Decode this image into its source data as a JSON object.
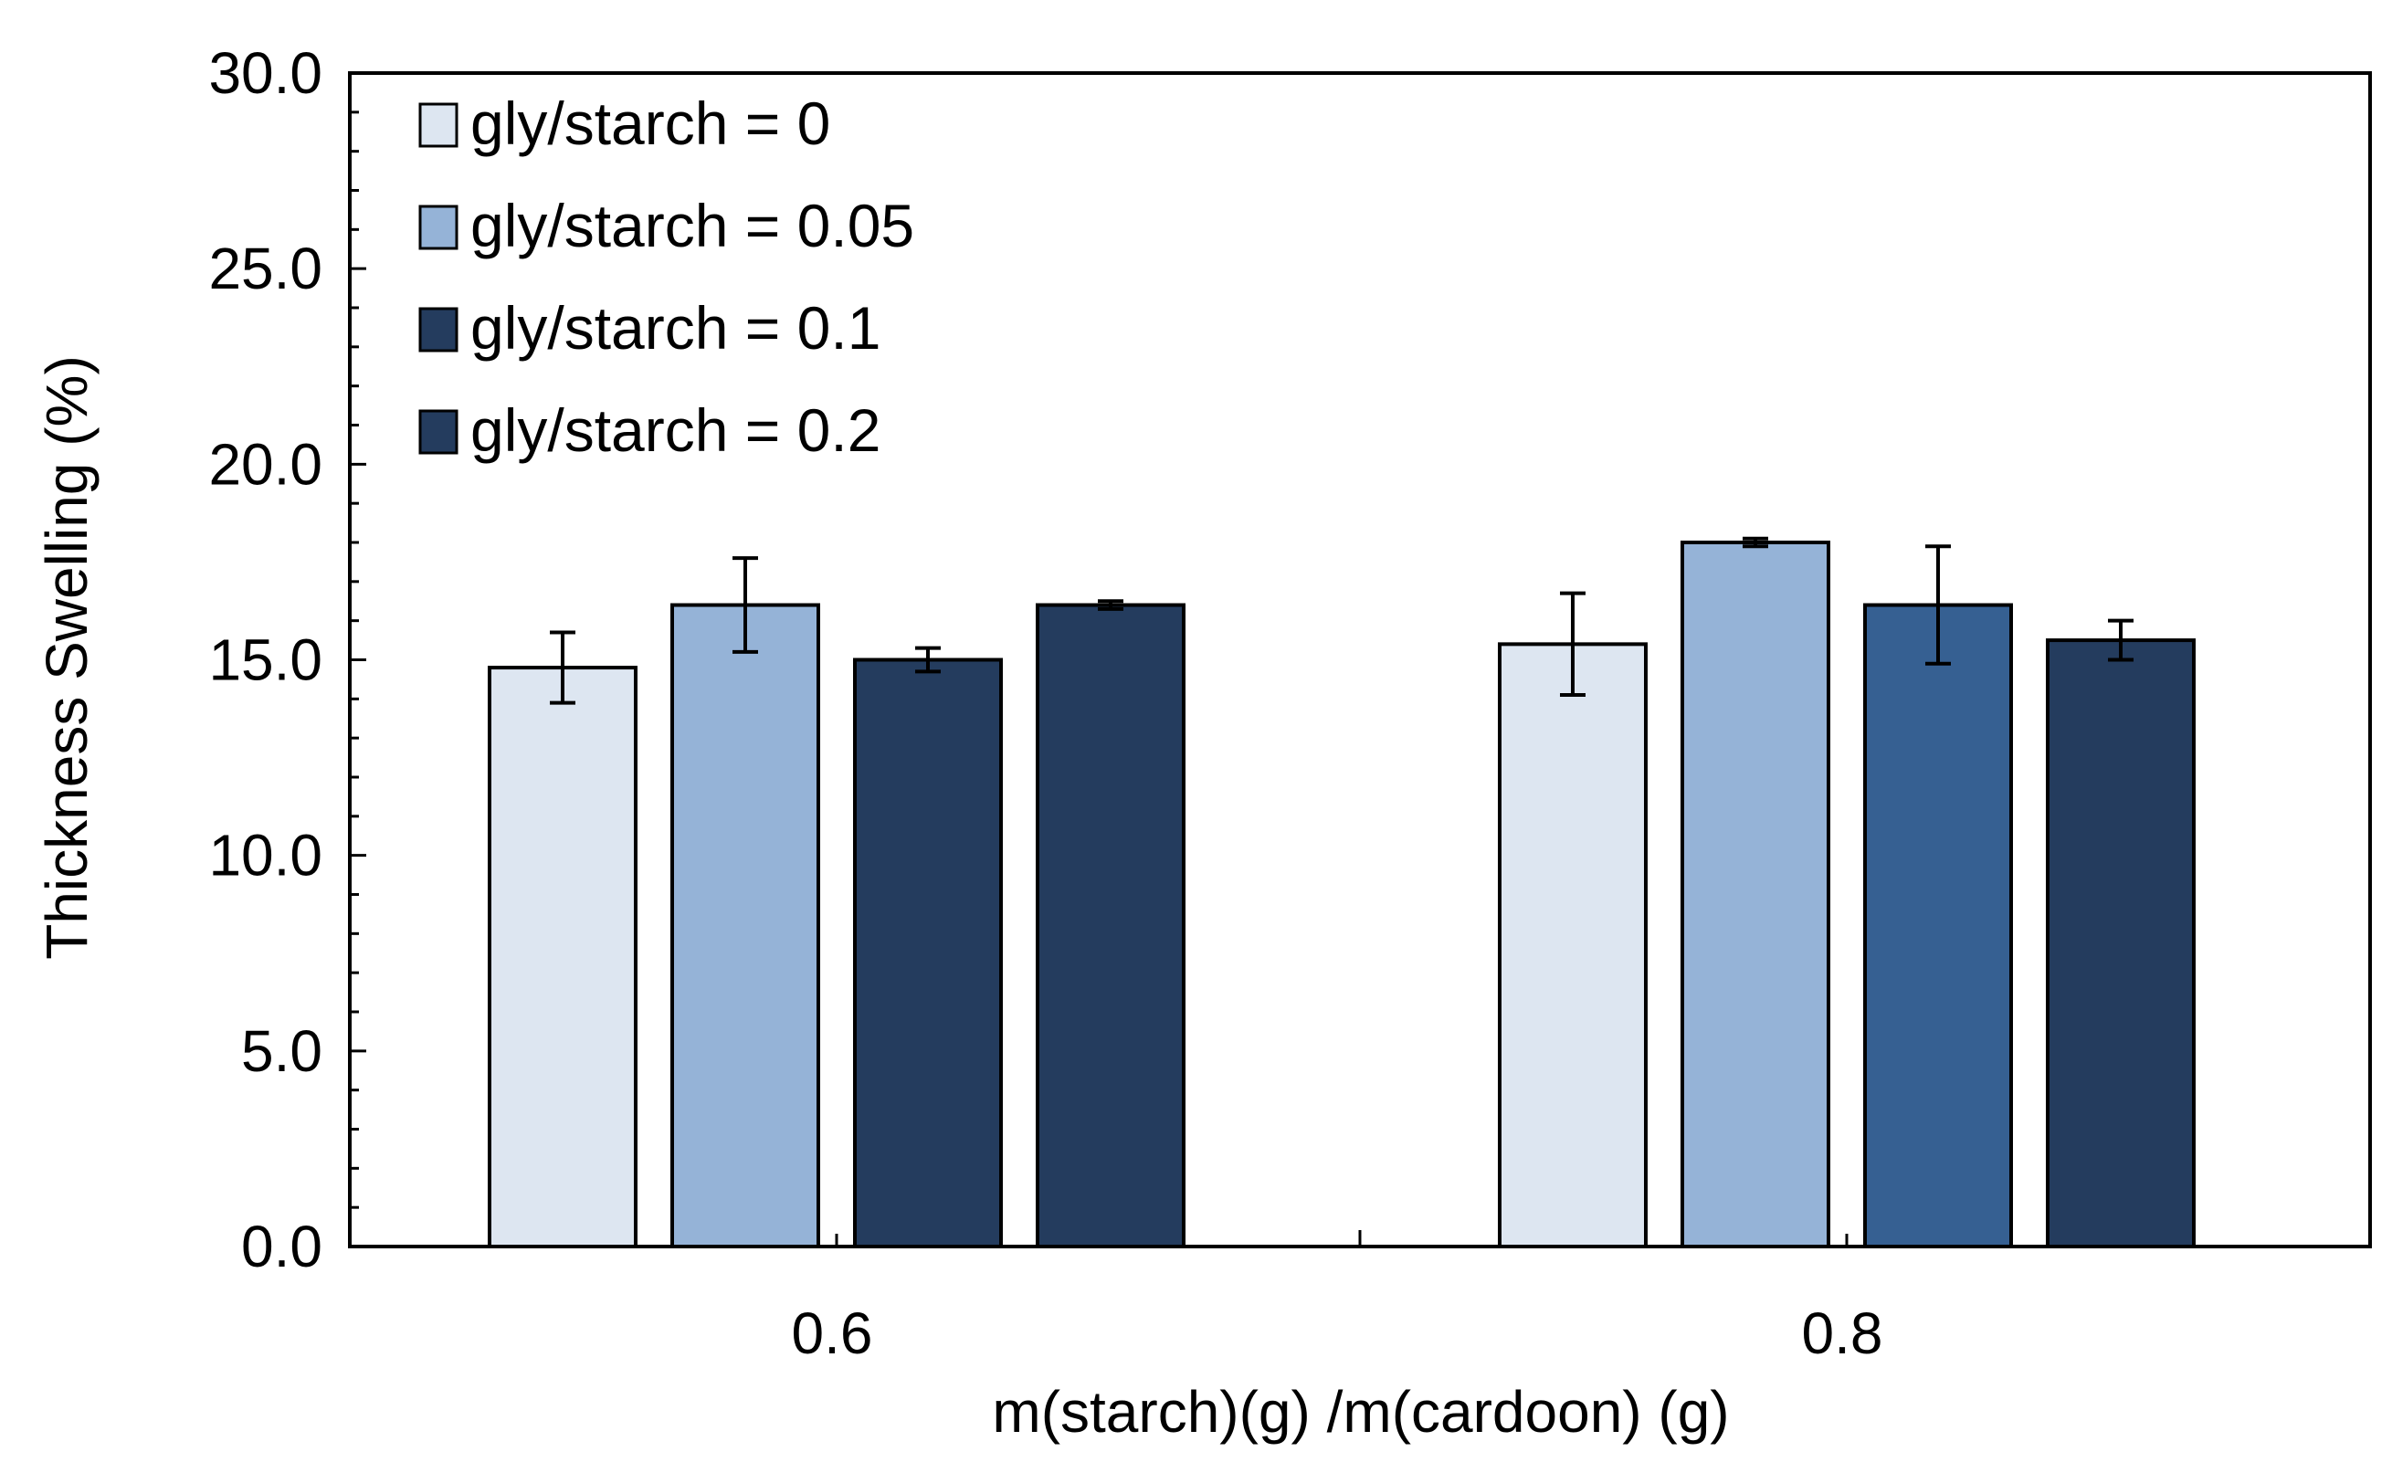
{
  "chart_data": {
    "type": "bar",
    "title": "",
    "xlabel": "m(starch)(g) /m(cardoon) (g)",
    "ylabel": "Thickness Swelling (%)",
    "ylim": [
      0,
      30
    ],
    "yticks": [
      "0.0",
      "5.0",
      "10.0",
      "15.0",
      "20.0",
      "25.0",
      "30.0"
    ],
    "categories": [
      "0.6",
      "0.8"
    ],
    "legend_position": "top-left",
    "series": [
      {
        "name": "gly/starch = 0",
        "values": [
          14.8,
          15.4
        ],
        "errors": [
          0.9,
          1.3
        ],
        "colors": [
          "#dde6f1",
          "#dde6f1"
        ]
      },
      {
        "name": "gly/starch = 0.05",
        "values": [
          16.4,
          18.0
        ],
        "errors": [
          1.2,
          0.1
        ],
        "colors": [
          "#95b3d7",
          "#95b3d7"
        ]
      },
      {
        "name": "gly/starch = 0.1",
        "values": [
          15.0,
          16.4
        ],
        "errors": [
          0.3,
          1.5
        ],
        "colors": [
          "#243c5e",
          "#366092"
        ]
      },
      {
        "name": "gly/starch = 0.2",
        "values": [
          16.4,
          15.5
        ],
        "errors": [
          0.1,
          0.5
        ],
        "colors": [
          "#243c5e",
          "#243c5e"
        ]
      }
    ]
  }
}
